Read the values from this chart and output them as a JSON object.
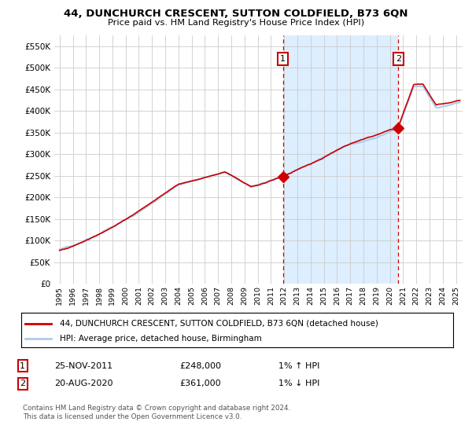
{
  "title1": "44, DUNCHURCH CRESCENT, SUTTON COLDFIELD, B73 6QN",
  "title2": "Price paid vs. HM Land Registry's House Price Index (HPI)",
  "ylim": [
    0,
    575000
  ],
  "yticks": [
    0,
    50000,
    100000,
    150000,
    200000,
    250000,
    300000,
    350000,
    400000,
    450000,
    500000,
    550000
  ],
  "ytick_labels": [
    "£0",
    "£50K",
    "£100K",
    "£150K",
    "£200K",
    "£250K",
    "£300K",
    "£350K",
    "£400K",
    "£450K",
    "£500K",
    "£550K"
  ],
  "sale1_year": 2011.9,
  "sale1_price": 248000,
  "sale1_label": "1",
  "sale2_year": 2020.63,
  "sale2_price": 361000,
  "sale2_label": "2",
  "shading_color": "#ddeeff",
  "grid_color": "#cccccc",
  "hpi_line_color": "#aaccee",
  "price_line_color": "#cc0000",
  "marker_color": "#cc0000",
  "dashed_line_color": "#cc0000",
  "legend_label1": "44, DUNCHURCH CRESCENT, SUTTON COLDFIELD, B73 6QN (detached house)",
  "legend_label2": "HPI: Average price, detached house, Birmingham",
  "annotation1_date": "25-NOV-2011",
  "annotation1_price": "£248,000",
  "annotation1_hpi": "1% ↑ HPI",
  "annotation2_date": "20-AUG-2020",
  "annotation2_price": "£361,000",
  "annotation2_hpi": "1% ↓ HPI",
  "footer": "Contains HM Land Registry data © Crown copyright and database right 2024.\nThis data is licensed under the Open Government Licence v3.0."
}
